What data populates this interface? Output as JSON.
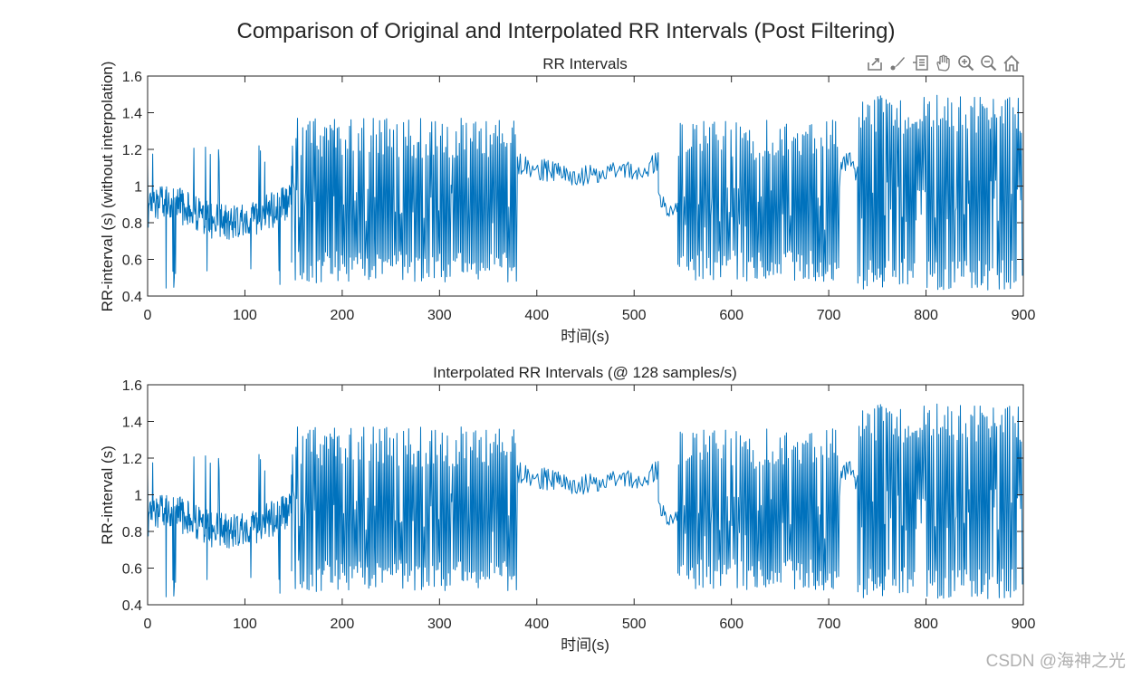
{
  "figure": {
    "suptitle": "Comparison of Original and Interpolated RR Intervals (Post Filtering)",
    "watermark": "CSDN @海神之光",
    "line_color": "#0072BD"
  },
  "toolbar": {
    "icons": [
      "export-icon",
      "brush-icon",
      "datatip-icon",
      "pan-icon",
      "zoom-in-icon",
      "zoom-out-icon",
      "home-icon"
    ]
  },
  "chart_data": [
    {
      "type": "line",
      "title": "RR Intervals",
      "xlabel": "时间(s)",
      "ylabel": "RR-interval (s) (without interpolation)",
      "xlim": [
        0,
        900
      ],
      "ylim": [
        0.4,
        1.6
      ],
      "xticks": [
        0,
        100,
        200,
        300,
        400,
        500,
        600,
        700,
        800,
        900
      ],
      "yticks": [
        0.4,
        0.6,
        0.8,
        1,
        1.2,
        1.4,
        1.6
      ],
      "xtick_labels": [
        "0",
        "100",
        "200",
        "300",
        "400",
        "500",
        "600",
        "700",
        "800",
        "900"
      ],
      "ytick_labels": [
        "0.4",
        "0.6",
        "0.8",
        "1",
        "1.2",
        "1.4",
        "1.6"
      ],
      "grid": false,
      "series": [
        {
          "segments": [
            {
              "x0": 0,
              "x1": 148,
              "base": 0.84,
              "amp": 0.1,
              "spike_p": 0.08,
              "spike_lo": 0.43,
              "spike_hi": 1.22,
              "step": 0.5,
              "trend": [
                [
                  0,
                  0.85
                ],
                [
                  15,
                  0.92
                ],
                [
                  40,
                  0.88
                ],
                [
                  70,
                  0.8
                ],
                [
                  110,
                  0.82
                ],
                [
                  148,
                  0.92
                ]
              ]
            },
            {
              "x0": 148,
              "x1": 380,
              "base": 0.92,
              "amp": 0.0,
              "osc": true,
              "lo": 0.47,
              "hi": 1.37,
              "step": 0.9
            },
            {
              "x0": 380,
              "x1": 525,
              "base": 1.05,
              "amp": 0.06,
              "spike_p": 0.0,
              "step": 1.2,
              "trend": [
                [
                  380,
                  1.12
                ],
                [
                  440,
                  1.05
                ],
                [
                  500,
                  1.08
                ],
                [
                  525,
                  1.13
                ]
              ]
            },
            {
              "x0": 525,
              "x1": 545,
              "base": 0.86,
              "amp": 0.04,
              "spike_p": 0.0,
              "step": 1.0,
              "trend": [
                [
                  525,
                  0.95
                ],
                [
                  535,
                  0.86
                ],
                [
                  545,
                  0.88
                ]
              ]
            },
            {
              "x0": 545,
              "x1": 712,
              "base": 0.88,
              "amp": 0.0,
              "osc": true,
              "lo": 0.48,
              "hi": 1.36,
              "step": 0.9
            },
            {
              "x0": 712,
              "x1": 730,
              "base": 1.12,
              "amp": 0.05,
              "spike_p": 0.0,
              "step": 1.0,
              "trend": [
                [
                  712,
                  1.1
                ],
                [
                  722,
                  1.16
                ],
                [
                  730,
                  1.05
                ]
              ]
            },
            {
              "x0": 730,
              "x1": 900,
              "base": 0.92,
              "amp": 0.0,
              "osc": true,
              "lo": 0.43,
              "hi": 1.5,
              "step": 0.9
            }
          ]
        }
      ]
    },
    {
      "type": "line",
      "title": "Interpolated RR Intervals (@ 128 samples/s)",
      "xlabel": "时间(s)",
      "ylabel": "RR-interval (s)",
      "xlim": [
        0,
        900
      ],
      "ylim": [
        0.4,
        1.6
      ],
      "xticks": [
        0,
        100,
        200,
        300,
        400,
        500,
        600,
        700,
        800,
        900
      ],
      "yticks": [
        0.4,
        0.6,
        0.8,
        1,
        1.2,
        1.4,
        1.6
      ],
      "xtick_labels": [
        "0",
        "100",
        "200",
        "300",
        "400",
        "500",
        "600",
        "700",
        "800",
        "900"
      ],
      "ytick_labels": [
        "0.4",
        "0.6",
        "0.8",
        "1",
        "1.2",
        "1.4",
        "1.6"
      ],
      "grid": false,
      "series": [
        {
          "segments": [
            {
              "x0": 0,
              "x1": 148,
              "base": 0.84,
              "amp": 0.1,
              "spike_p": 0.08,
              "spike_lo": 0.43,
              "spike_hi": 1.22,
              "step": 0.5,
              "trend": [
                [
                  0,
                  0.85
                ],
                [
                  15,
                  0.92
                ],
                [
                  40,
                  0.88
                ],
                [
                  70,
                  0.8
                ],
                [
                  110,
                  0.82
                ],
                [
                  148,
                  0.92
                ]
              ]
            },
            {
              "x0": 148,
              "x1": 380,
              "base": 0.92,
              "amp": 0.0,
              "osc": true,
              "lo": 0.47,
              "hi": 1.37,
              "step": 0.9
            },
            {
              "x0": 380,
              "x1": 525,
              "base": 1.05,
              "amp": 0.06,
              "spike_p": 0.0,
              "step": 1.2,
              "trend": [
                [
                  380,
                  1.12
                ],
                [
                  440,
                  1.05
                ],
                [
                  500,
                  1.08
                ],
                [
                  525,
                  1.13
                ]
              ]
            },
            {
              "x0": 525,
              "x1": 545,
              "base": 0.86,
              "amp": 0.04,
              "spike_p": 0.0,
              "step": 1.0,
              "trend": [
                [
                  525,
                  0.95
                ],
                [
                  535,
                  0.86
                ],
                [
                  545,
                  0.88
                ]
              ]
            },
            {
              "x0": 545,
              "x1": 712,
              "base": 0.88,
              "amp": 0.0,
              "osc": true,
              "lo": 0.48,
              "hi": 1.36,
              "step": 0.9
            },
            {
              "x0": 712,
              "x1": 730,
              "base": 1.12,
              "amp": 0.05,
              "spike_p": 0.0,
              "step": 1.0,
              "trend": [
                [
                  712,
                  1.1
                ],
                [
                  722,
                  1.16
                ],
                [
                  730,
                  1.05
                ]
              ]
            },
            {
              "x0": 730,
              "x1": 900,
              "base": 0.92,
              "amp": 0.0,
              "osc": true,
              "lo": 0.43,
              "hi": 1.5,
              "step": 0.9
            }
          ]
        }
      ]
    }
  ]
}
